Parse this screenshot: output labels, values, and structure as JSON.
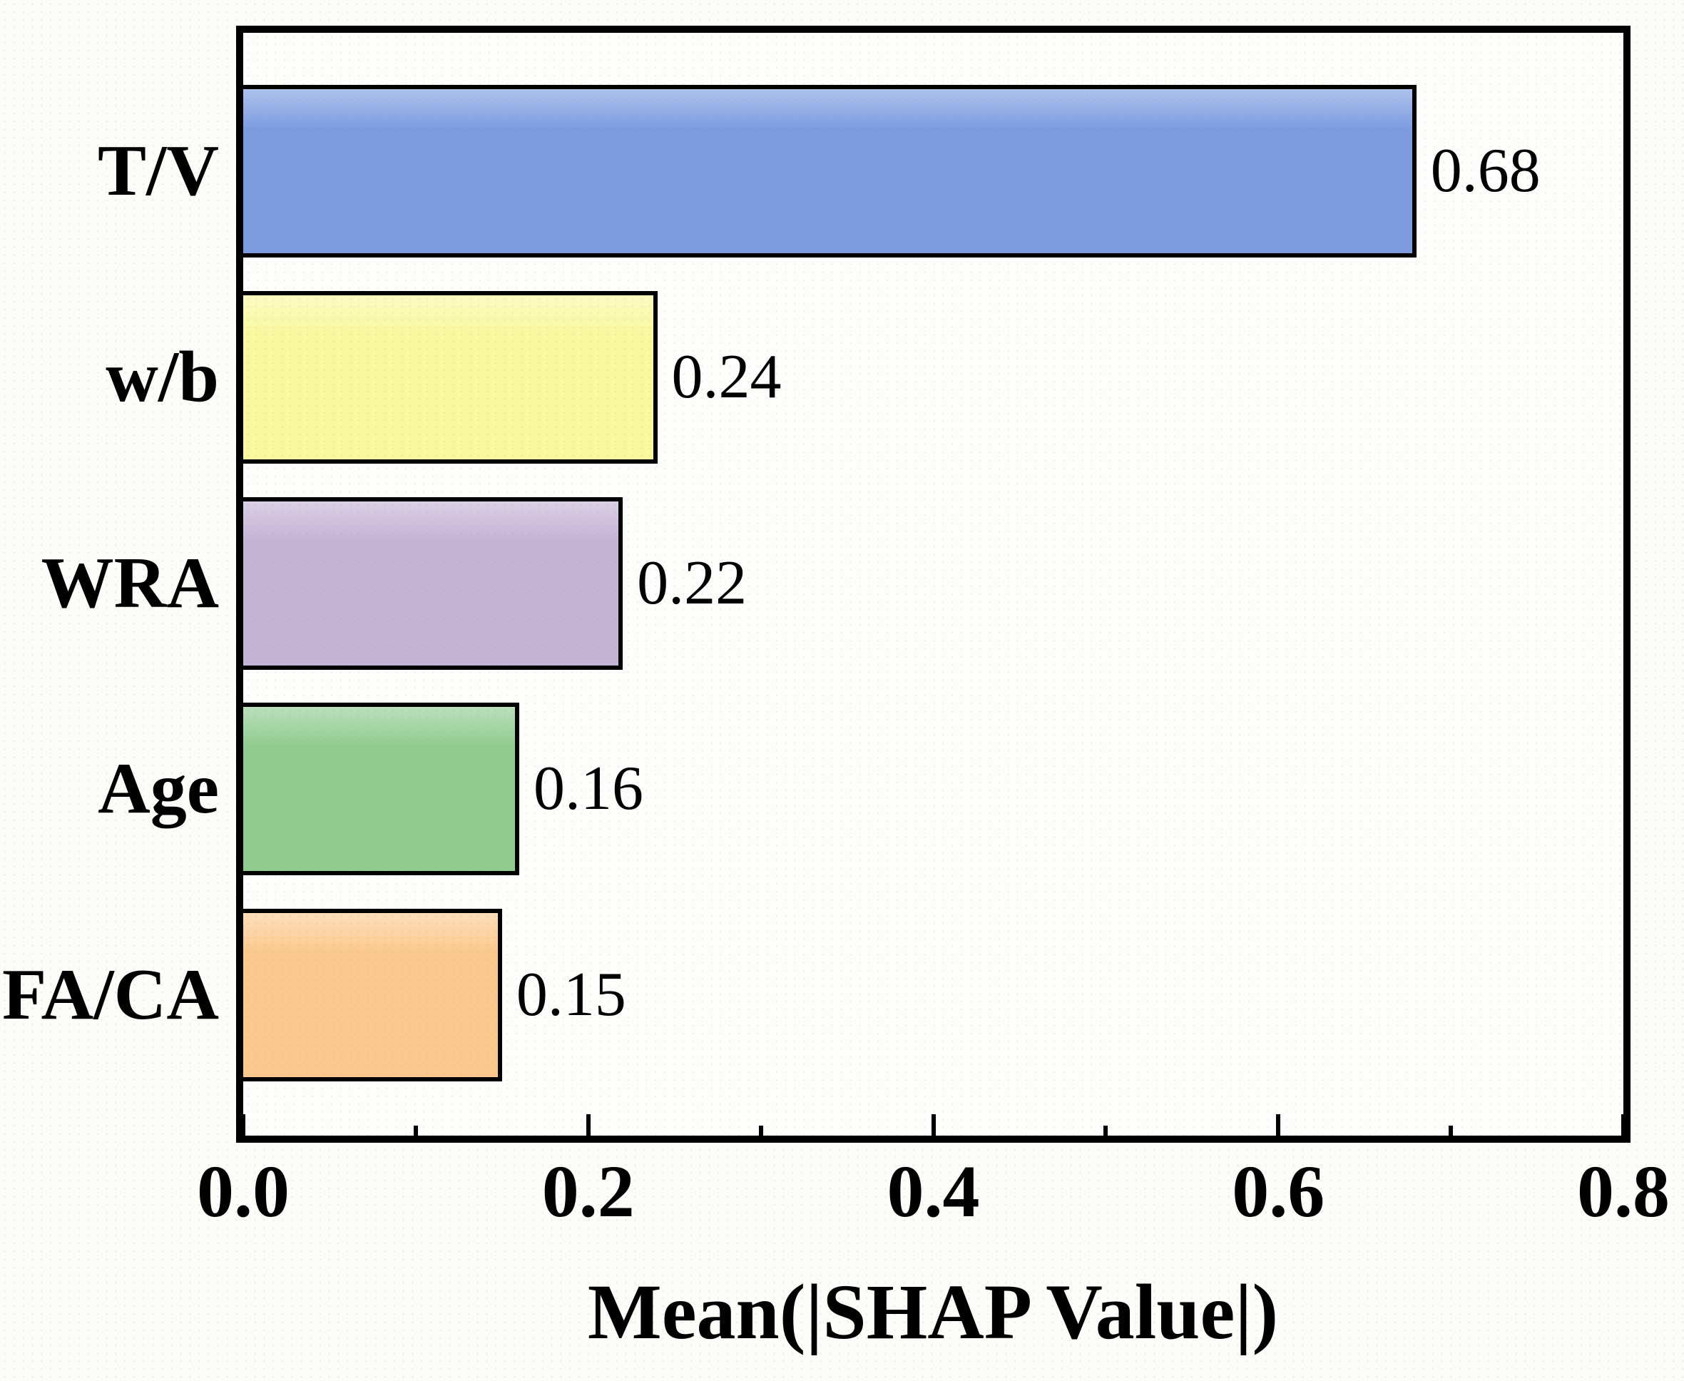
{
  "figure": {
    "background_color": "#fcfcf8",
    "plot_background_color": "#fdfdfb",
    "axis_color": "#000000"
  },
  "chart_data": {
    "type": "bar",
    "orientation": "horizontal",
    "title": "",
    "xlabel": "Mean(|SHAP Value|)",
    "ylabel": "",
    "categories": [
      "T/V",
      "w/b",
      "WRA",
      "Age",
      "FA/CA"
    ],
    "values": [
      0.68,
      0.24,
      0.22,
      0.16,
      0.15
    ],
    "value_labels": [
      "0.68",
      "0.24",
      "0.22",
      "0.16",
      "0.15"
    ],
    "bar_colors": [
      "#7d9ce0",
      "#f8f89e",
      "#c5b3d6",
      "#90cc90",
      "#fbc98e"
    ],
    "bar_edge_color": "#000000",
    "xlim": [
      0.0,
      0.8
    ],
    "x_major_ticks": [
      0.0,
      0.2,
      0.4,
      0.6,
      0.8
    ],
    "x_minor_ticks": [
      0.1,
      0.3,
      0.5,
      0.7
    ],
    "x_tick_labels": [
      "0.0",
      "0.2",
      "0.4",
      "0.6",
      "0.8"
    ],
    "grid": false,
    "legend_position": "none"
  }
}
